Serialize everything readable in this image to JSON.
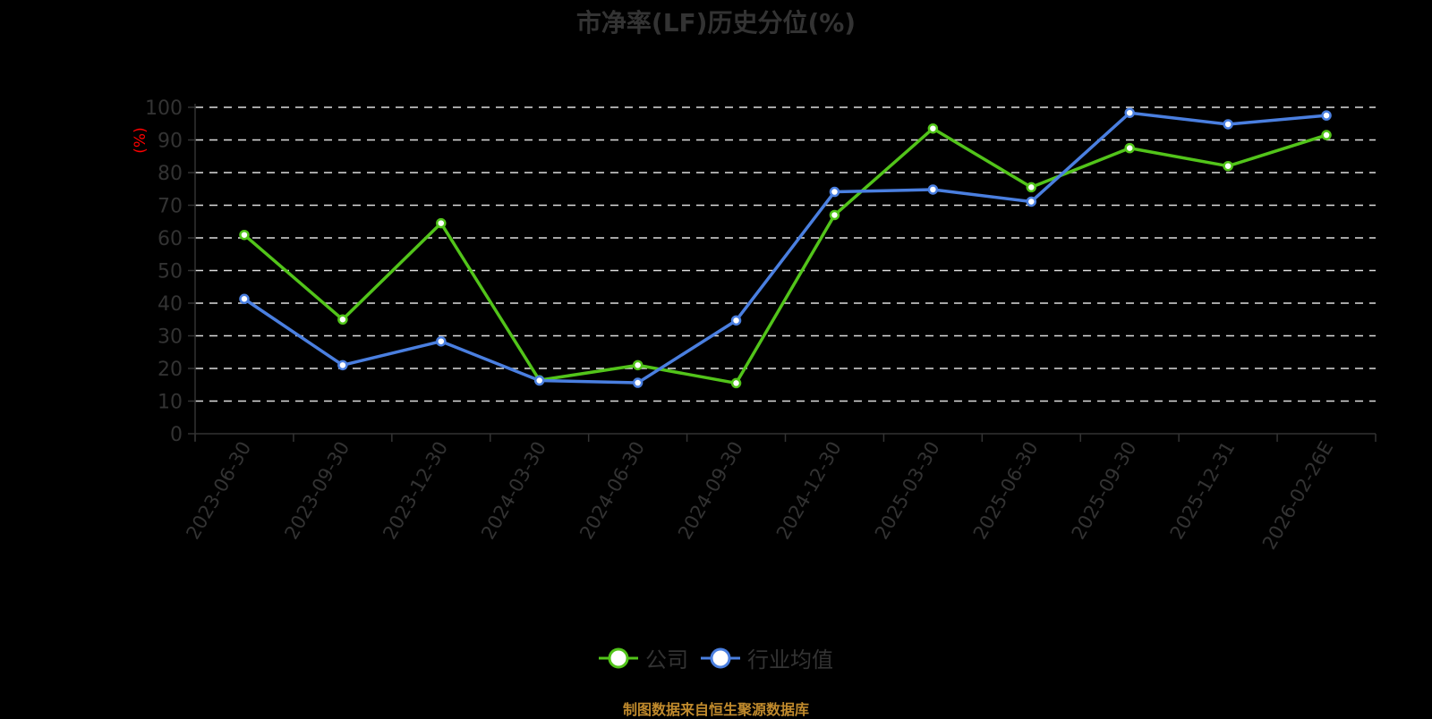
{
  "chart_data": {
    "type": "line",
    "title": "市净率(LF)历史分位(%)",
    "xlabel": "",
    "ylabel": "(%)",
    "ylim": [
      0,
      100
    ],
    "yticks": [
      0,
      10,
      20,
      30,
      40,
      50,
      60,
      70,
      80,
      90,
      100
    ],
    "grid": true,
    "legend_position": "bottom",
    "categories": [
      "2023-06-30",
      "2023-09-30",
      "2023-12-30",
      "2024-03-30",
      "2024-06-30",
      "2024-09-30",
      "2024-12-30",
      "2025-03-30",
      "2025-06-30",
      "2025-09-30",
      "2025-12-31",
      "2026-02-26E"
    ],
    "series": [
      {
        "name": "公司",
        "color": "#52c41a",
        "values": [
          60.9,
          35.0,
          64.5,
          16.4,
          21.0,
          15.5,
          67.0,
          93.5,
          75.5,
          87.5,
          82.0,
          91.5
        ]
      },
      {
        "name": "行业均值",
        "color": "#4a7fe0",
        "values": [
          41.3,
          21.0,
          28.3,
          16.3,
          15.6,
          34.7,
          74.1,
          74.8,
          71.1,
          98.3,
          94.8,
          97.5
        ]
      }
    ]
  },
  "title": "市净率(LF)历史分位(%)",
  "y_axis_label": "(%)",
  "legend": {
    "items": [
      {
        "label": "公司",
        "color": "#52c41a"
      },
      {
        "label": "行业均值",
        "color": "#4a7fe0"
      }
    ]
  },
  "source_note": "制图数据来自恒生聚源数据库",
  "colors": {
    "background": "#000000",
    "text": "#333333",
    "axis_label": "#ff0000",
    "grid": "#dddddd",
    "source": "#c08a2c"
  }
}
